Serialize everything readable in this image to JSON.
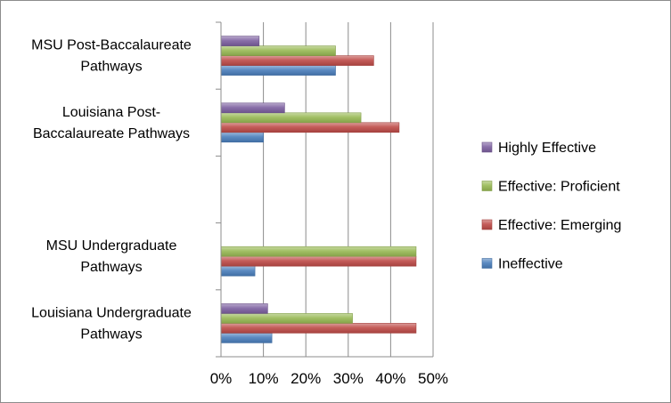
{
  "chart_data": {
    "type": "bar",
    "orientation": "horizontal",
    "categories": [
      [
        "Louisiana Undergraduate",
        "Pathways"
      ],
      [
        "MSU Undergraduate",
        "Pathways"
      ],
      [],
      [
        "Louisiana Post-",
        "Baccalaureate Pathways"
      ],
      [
        "MSU Post-Baccalaureate",
        "Pathways"
      ]
    ],
    "series": [
      {
        "name": "Ineffective",
        "color": "#4a7ebb",
        "values": [
          12,
          8,
          null,
          10,
          27
        ]
      },
      {
        "name": "Effective: Emerging",
        "color": "#be4b48",
        "values": [
          46,
          46,
          null,
          42,
          36
        ]
      },
      {
        "name": "Effective: Proficient",
        "color": "#98b954",
        "values": [
          31,
          46,
          null,
          33,
          27
        ]
      },
      {
        "name": "Highly Effective",
        "color": "#7d60a0",
        "values": [
          11,
          null,
          null,
          15,
          9
        ]
      }
    ],
    "xlim": [
      0,
      50
    ],
    "xticks": [
      "0%",
      "10%",
      "20%",
      "30%",
      "40%",
      "50%"
    ],
    "xlabel": "",
    "ylabel": "",
    "title": "",
    "grid": "vertical",
    "legend_position": "right",
    "legend_order": [
      "Highly Effective",
      "Effective: Proficient",
      "Effective: Emerging",
      "Ineffective"
    ]
  }
}
